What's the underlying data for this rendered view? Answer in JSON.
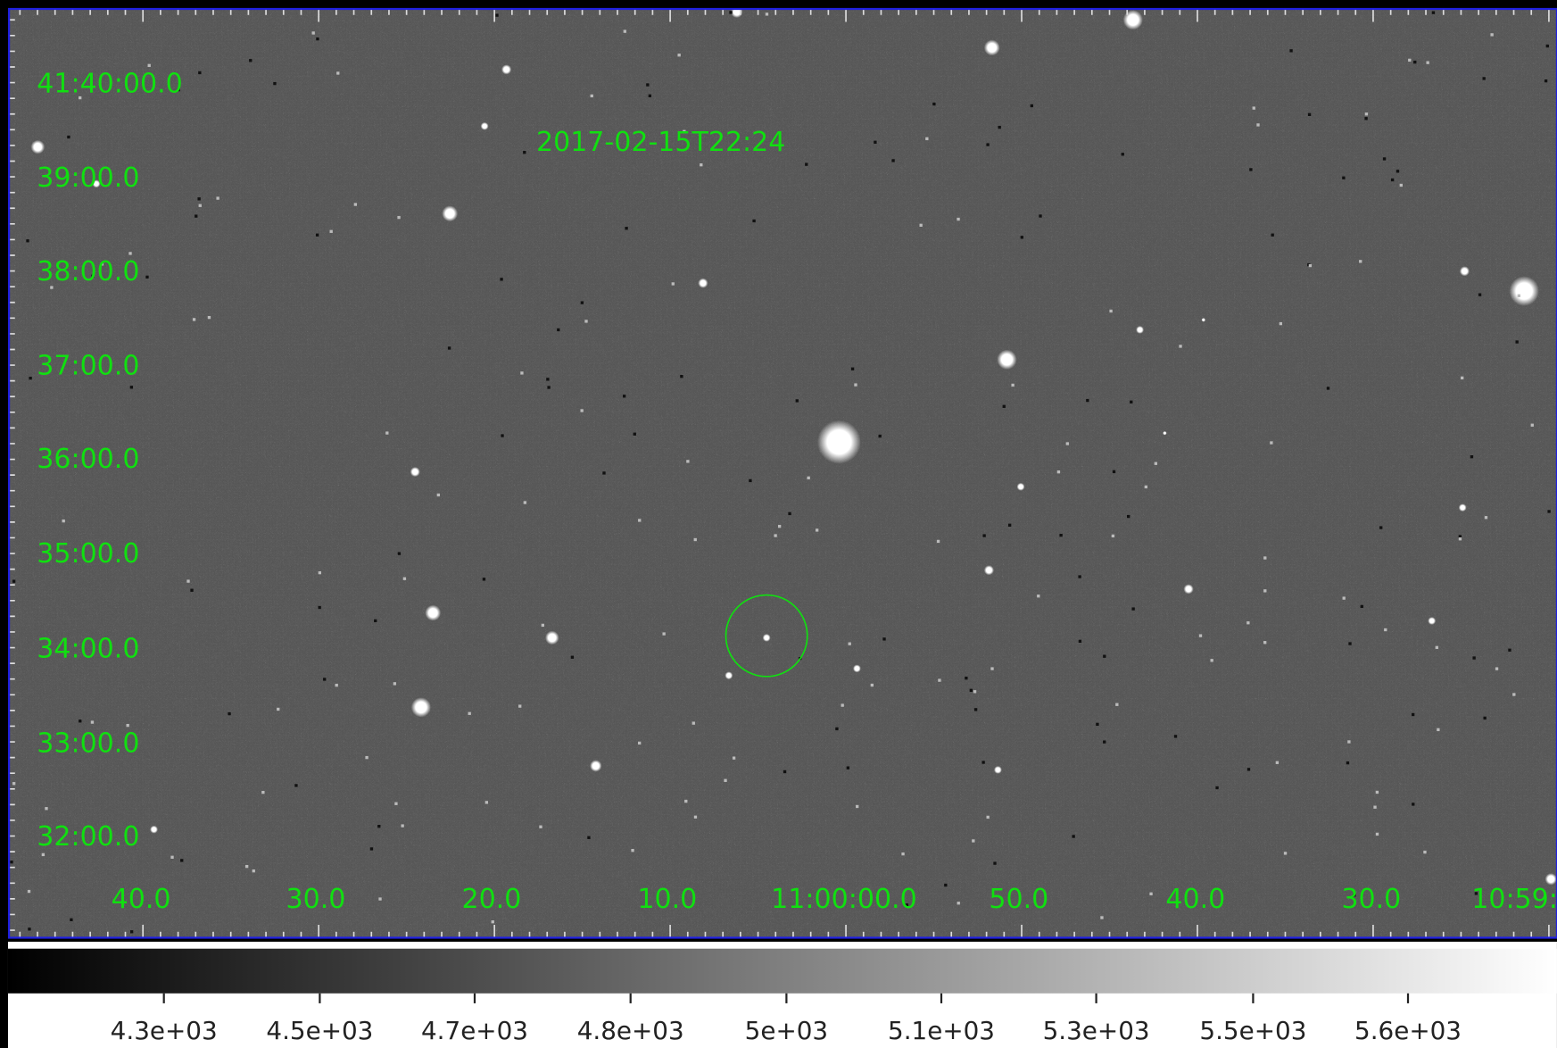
{
  "header": {
    "title": "2017-02-15T22:24"
  },
  "axes": {
    "y_labels": [
      "41:40:00.0",
      "39:00.0",
      "38:00.0",
      "37:00.0",
      "36:00.0",
      "35:00.0",
      "34:00.0",
      "33:00.0",
      "32:00.0"
    ],
    "x_labels": [
      "40.0",
      "30.0",
      "20.0",
      "10.0",
      "11:00:00.0",
      "50.0",
      "40.0",
      "30.0",
      "10:59:"
    ]
  },
  "colorbar": {
    "labels": [
      "4.3e+03",
      "4.5e+03",
      "4.7e+03",
      "4.8e+03",
      "5e+03",
      "5.1e+03",
      "5.3e+03",
      "5.5e+03",
      "5.6e+03"
    ]
  }
}
